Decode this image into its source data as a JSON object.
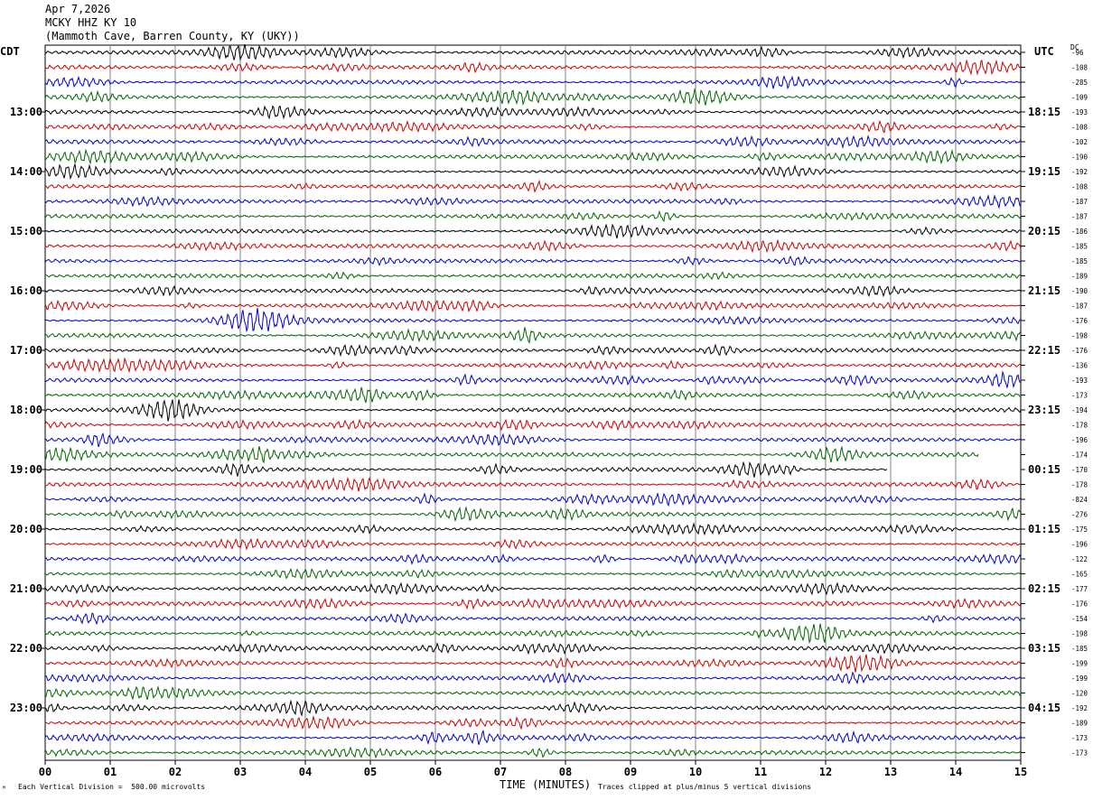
{
  "header": {
    "date": "Apr 7,2026",
    "station": "MCKY HHZ KY 10",
    "location": "(Mammoth Cave, Barren County, KY (UKY))"
  },
  "left_tz": "CDT",
  "right_tz": "UTC",
  "dc_label": "DC",
  "footer": {
    "scale_note": "Each Vertical Division =  500.00 microvolts",
    "xlabel": "TIME (MINUTES)",
    "clip_note": "Traces clipped at plus/minus 5 vertical divisions"
  },
  "colors": {
    "cycle": [
      "#000000",
      "#cc0000",
      "#0000cc",
      "#006600"
    ],
    "grid": "#808080"
  },
  "chart_data": {
    "type": "line",
    "title": "MCKY HHZ KY 10",
    "xlabel": "TIME (MINUTES)",
    "xlim": [
      0,
      15
    ],
    "x_ticks": [
      "00",
      "01",
      "02",
      "03",
      "04",
      "05",
      "06",
      "07",
      "08",
      "09",
      "10",
      "11",
      "12",
      "13",
      "14",
      "15"
    ],
    "left_hour_labels": [
      "13:00",
      "14:00",
      "15:00",
      "16:00",
      "17:00",
      "18:00",
      "19:00",
      "20:00",
      "21:00",
      "22:00",
      "23:00"
    ],
    "right_hour_labels": [
      "18:15",
      "19:15",
      "20:15",
      "21:15",
      "22:15",
      "23:15",
      "00:15",
      "01:15",
      "02:15",
      "03:15",
      "04:15"
    ],
    "first_hour_label_row": 4,
    "rows_per_hour": 4,
    "dc_offsets": [
      "-96",
      "-108",
      "-285",
      "-109",
      "-193",
      "-108",
      "-102",
      "-190",
      "-192",
      "-108",
      "-187",
      "-187",
      "-186",
      "-185",
      "-185",
      "-189",
      "-190",
      "-187",
      "-176",
      "-198",
      "-176",
      "-136",
      "-193",
      "-173",
      "-194",
      "-178",
      "-196",
      "-174",
      "-170",
      "-178",
      "-824",
      "-276",
      "-175",
      "-196",
      "-122",
      "-165",
      "-177",
      "-176",
      "-154",
      "-198",
      "-185",
      "-199",
      "-199",
      "-120",
      "-192",
      "-189",
      "-173",
      "-173"
    ],
    "row_end_minutes": [
      15,
      15,
      15,
      15,
      15,
      15,
      15,
      15,
      15,
      15,
      15,
      15,
      15,
      15,
      15,
      15,
      15,
      15,
      15,
      15,
      15,
      15,
      15,
      15,
      15,
      15,
      15,
      14.35,
      12.95,
      15,
      15,
      15,
      15,
      15,
      15,
      15,
      15,
      15,
      15,
      15,
      15,
      15,
      15,
      15,
      15,
      15,
      15,
      15
    ]
  }
}
